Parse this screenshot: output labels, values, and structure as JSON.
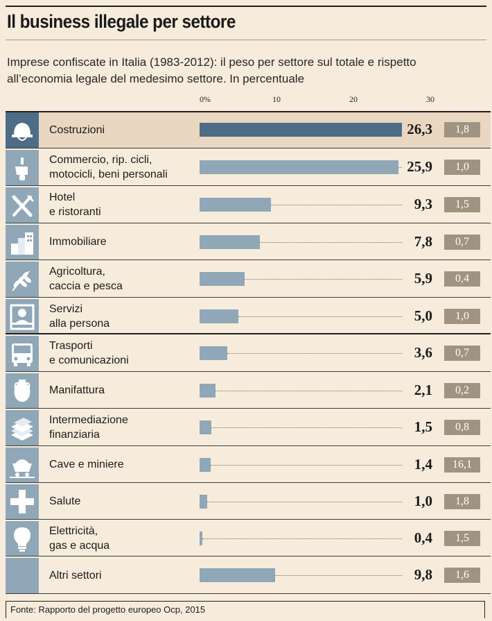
{
  "chart_data": {
    "type": "bar",
    "title": "Il business illegale per settore",
    "subtitle_lines": [
      "Imprese confiscate in Italia (1983-2012): il peso per settore sul totale e rispetto",
      "all’economia legale del medesimo settore. In percentuale"
    ],
    "xlim": [
      0,
      30
    ],
    "ticks": [
      {
        "value": 0,
        "label": "0%"
      },
      {
        "value": 10,
        "label": "10"
      },
      {
        "value": 20,
        "label": "20"
      },
      {
        "value": 30,
        "label": "30"
      }
    ],
    "categories": [
      {
        "lines": [
          "Costruzioni"
        ],
        "icon": "helmet-icon",
        "value": 26.3,
        "value_label": "26,3",
        "ratio": "1,8",
        "highlight": true
      },
      {
        "lines": [
          "Commercio, rip. cicli,",
          "motocicli, beni personali"
        ],
        "icon": "scooter-icon",
        "value": 25.9,
        "value_label": "25,9",
        "ratio": "1,0"
      },
      {
        "lines": [
          "Hotel",
          "e ristoranti"
        ],
        "icon": "cutlery-icon",
        "value": 9.3,
        "value_label": "9,3",
        "ratio": "1,5"
      },
      {
        "lines": [
          "Immobiliare"
        ],
        "icon": "buildings-icon",
        "value": 7.8,
        "value_label": "7,8",
        "ratio": "0,7"
      },
      {
        "lines": [
          "Agricoltura,",
          "caccia e pesca"
        ],
        "icon": "wheat-icon",
        "value": 5.9,
        "value_label": "5,9",
        "ratio": "0,4"
      },
      {
        "lines": [
          "Servizi",
          "alla persona"
        ],
        "icon": "service-desk-icon",
        "value": 5.0,
        "value_label": "5,0",
        "ratio": "1,0"
      },
      {
        "lines": [
          "Trasporti",
          "e comunicazioni"
        ],
        "icon": "bus-icon",
        "value": 3.6,
        "value_label": "3,6",
        "ratio": "0,7"
      },
      {
        "lines": [
          "Manifattura"
        ],
        "icon": "amphora-icon",
        "value": 2.1,
        "value_label": "2,1",
        "ratio": "0,2"
      },
      {
        "lines": [
          "Intermediazione",
          "finanziaria"
        ],
        "icon": "money-stack-icon",
        "value": 1.5,
        "value_label": "1,5",
        "ratio": "0,8"
      },
      {
        "lines": [
          "Cave e miniere"
        ],
        "icon": "mine-cart-icon",
        "value": 1.4,
        "value_label": "1,4",
        "ratio": "16,1"
      },
      {
        "lines": [
          "Salute"
        ],
        "icon": "cross-icon",
        "value": 1.0,
        "value_label": "1,0",
        "ratio": "1,8"
      },
      {
        "lines": [
          "Elettricità,",
          "gas e acqua"
        ],
        "icon": "lightbulb-icon",
        "value": 0.4,
        "value_label": "0,4",
        "ratio": "1,5"
      },
      {
        "lines": [
          "Altri settori"
        ],
        "icon": "",
        "value": 9.8,
        "value_label": "9,8",
        "ratio": "1,6"
      }
    ],
    "source": "Fonte: Rapporto del progetto europeo Ocp, 2015",
    "colors": {
      "bar": "#8fa7b7",
      "bar_highlight": "#4d6c87",
      "ratio_box": "#a09381",
      "background": "#f7ecdc",
      "highlight_row": "#e9d7c2"
    }
  }
}
